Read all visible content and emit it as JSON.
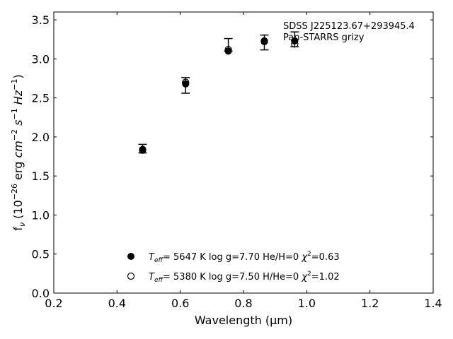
{
  "chart_data": {
    "type": "scatter",
    "title": "",
    "xlabel": "Wavelength (μm)",
    "ylabel": "f_ν (10^−26 erg cm^−2 s^−1 Hz^−1)",
    "xlim": [
      0.2,
      1.4
    ],
    "ylim": [
      0.0,
      3.6
    ],
    "xticks": [
      0.2,
      0.4,
      0.6,
      0.8,
      1.0,
      1.2,
      1.4
    ],
    "yticks": [
      0.0,
      0.5,
      1.0,
      1.5,
      2.0,
      2.5,
      3.0,
      3.5
    ],
    "tick_format": {
      "x": 1,
      "y": 1
    },
    "grid": false,
    "annotation": {
      "lines": [
        "SDSS J225123.67+293945.4",
        "Pan-STARRS grizy"
      ],
      "placement": "top-right"
    },
    "observed": {
      "x": [
        0.481,
        0.617,
        0.752,
        0.866,
        0.962
      ],
      "y": [
        1.85,
        2.66,
        3.18,
        3.21,
        3.25
      ],
      "yerr": [
        0.055,
        0.1,
        0.08,
        0.095,
        0.095
      ]
    },
    "series": [
      {
        "marker": "filled-circle",
        "color": "#000000",
        "x": [
          0.481,
          0.617,
          0.752,
          0.866,
          0.962
        ],
        "y": [
          1.84,
          2.68,
          3.1,
          3.23,
          3.23
        ],
        "legend": {
          "teff": "5647 K",
          "logg": "log g=7.70",
          "comp": "He/H=0",
          "chi2": "=0.63"
        }
      },
      {
        "marker": "open-circle",
        "color": "#000000",
        "x": [
          0.481,
          0.617,
          0.752,
          0.866,
          0.962
        ],
        "y": [
          1.83,
          2.7,
          3.12,
          3.22,
          3.19
        ],
        "legend": {
          "teff": "5380 K",
          "logg": "log g=7.50",
          "comp": "H/He=0",
          "chi2": "=1.02"
        }
      }
    ],
    "legend_placement": "bottom-center"
  }
}
